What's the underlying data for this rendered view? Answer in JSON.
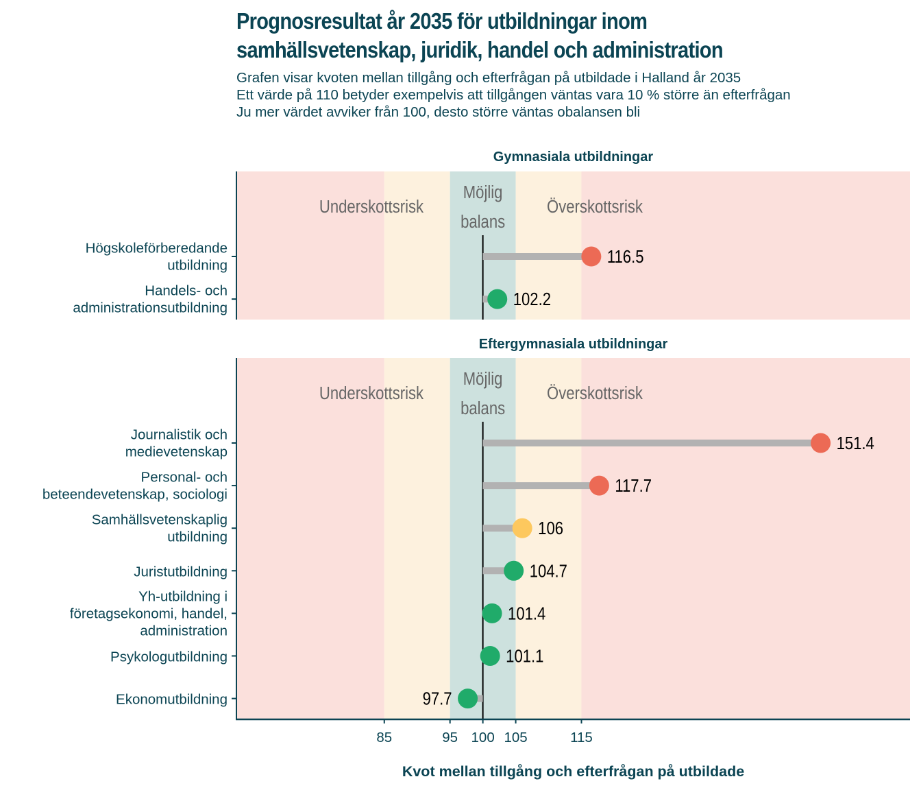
{
  "header": {
    "title_lines": [
      "Prognosresultat år 2035 för utbildningar inom",
      "samhällsvetenskap, juridik, handel och administration"
    ],
    "subtitle_lines": [
      "Grafen visar kvoten mellan tillgång och efterfrågan på utbildade i Halland år 2035",
      "Ett värde på 110 betyder exempelvis att tillgången väntas vara 10 % större än efterfrågan",
      "Ju mer värdet avviker från 100, desto större väntas obalansen bli"
    ]
  },
  "colors": {
    "text": "#0b4453",
    "zone_red": "#fbe0dc",
    "zone_yellow": "#fdf1de",
    "zone_balance": "#cde1de",
    "zone_label": "#666666",
    "stem": "#b2b2b2",
    "reference_line": "#000000",
    "point_high": "#ec6a55",
    "point_mid": "#fdc85e",
    "point_ok": "#20ab6a",
    "axis": "#0b4453"
  },
  "chart_data": {
    "type": "lollipop",
    "title": "Prognosresultat år 2035 för utbildningar inom samhällsvetenskap, juridik, handel och administration",
    "xlabel": "Kvot mellan tillgång och efterfrågan på utbildade",
    "ylabel": "",
    "xlim": [
      62.5,
      165
    ],
    "reference_value": 100,
    "x_ticks": [
      85,
      95,
      100,
      105,
      115
    ],
    "x_tick_labels": [
      "85",
      "95",
      "100",
      "105",
      "115"
    ],
    "zones": [
      {
        "from": 62.5,
        "to": 85,
        "type": "red"
      },
      {
        "from": 85,
        "to": 95,
        "type": "yellow"
      },
      {
        "from": 95,
        "to": 105,
        "type": "balance"
      },
      {
        "from": 105,
        "to": 115,
        "type": "yellow"
      },
      {
        "from": 115,
        "to": 165,
        "type": "red"
      }
    ],
    "zone_labels": {
      "under": "Underskottsrisk",
      "balance_lines": [
        "Möjlig",
        "balans"
      ],
      "over": "Överskottsrisk"
    },
    "panels": [
      {
        "title": "Gymnasiala utbildningar",
        "items": [
          {
            "label_lines": [
              "Högskoleförberedande",
              "utbildning"
            ],
            "value": 116.5,
            "display": "116.5",
            "status": "high"
          },
          {
            "label_lines": [
              "Handels- och",
              "administrationsutbildning"
            ],
            "value": 102.2,
            "display": "102.2",
            "status": "ok"
          }
        ]
      },
      {
        "title": "Eftergymnasiala utbildningar",
        "items": [
          {
            "label_lines": [
              "Journalistik och",
              "medievetenskap"
            ],
            "value": 151.4,
            "display": "151.4",
            "status": "high"
          },
          {
            "label_lines": [
              "Personal- och",
              "beteendevetenskap, sociologi"
            ],
            "value": 117.7,
            "display": "117.7",
            "status": "high"
          },
          {
            "label_lines": [
              "Samhällsvetenskaplig",
              "utbildning"
            ],
            "value": 106,
            "display": "106",
            "status": "mid"
          },
          {
            "label_lines": [
              "Juristutbildning"
            ],
            "value": 104.7,
            "display": "104.7",
            "status": "ok"
          },
          {
            "label_lines": [
              "Yh-utbildning i",
              "företagsekonomi, handel,",
              "administration"
            ],
            "value": 101.4,
            "display": "101.4",
            "status": "ok"
          },
          {
            "label_lines": [
              "Psykologutbildning"
            ],
            "value": 101.1,
            "display": "101.1",
            "status": "ok"
          },
          {
            "label_lines": [
              "Ekonomutbildning"
            ],
            "value": 97.7,
            "display": "97.7",
            "status": "ok"
          }
        ]
      }
    ]
  }
}
